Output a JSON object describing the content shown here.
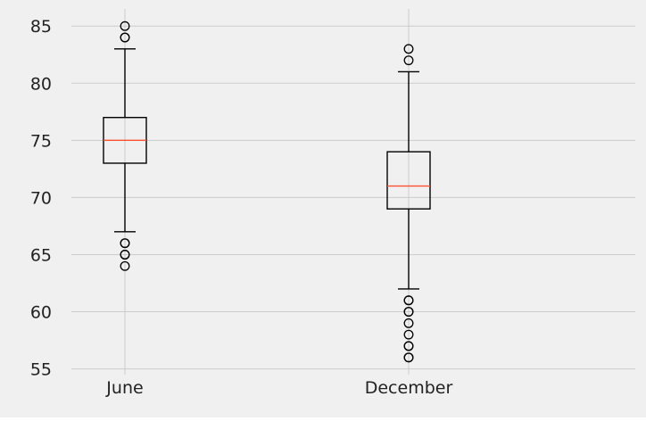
{
  "chart_data": {
    "type": "box",
    "title": "",
    "xlabel": "",
    "ylabel": "",
    "categories": [
      "June",
      "December"
    ],
    "ylim": [
      54.5,
      86.5
    ],
    "yticks": [
      55,
      60,
      65,
      70,
      75,
      80,
      85
    ],
    "grid": true,
    "colors": {
      "figure_background": "#f0f0f0",
      "plot_background": "#f0f0f0",
      "grid": "#cbcbcb",
      "box": "#000000",
      "median": "#fc4f30"
    },
    "series": [
      {
        "category": "June",
        "whisker_low": 67,
        "q1": 73,
        "median": 75,
        "q3": 77,
        "whisker_high": 83,
        "outliers": [
          64,
          65,
          65,
          66,
          66,
          84,
          84,
          85
        ]
      },
      {
        "category": "December",
        "whisker_low": 62,
        "q1": 69,
        "median": 71,
        "q3": 74,
        "whisker_high": 81,
        "outliers": [
          56,
          56,
          57,
          57,
          58,
          59,
          60,
          60,
          61,
          61,
          82,
          83
        ]
      }
    ]
  }
}
